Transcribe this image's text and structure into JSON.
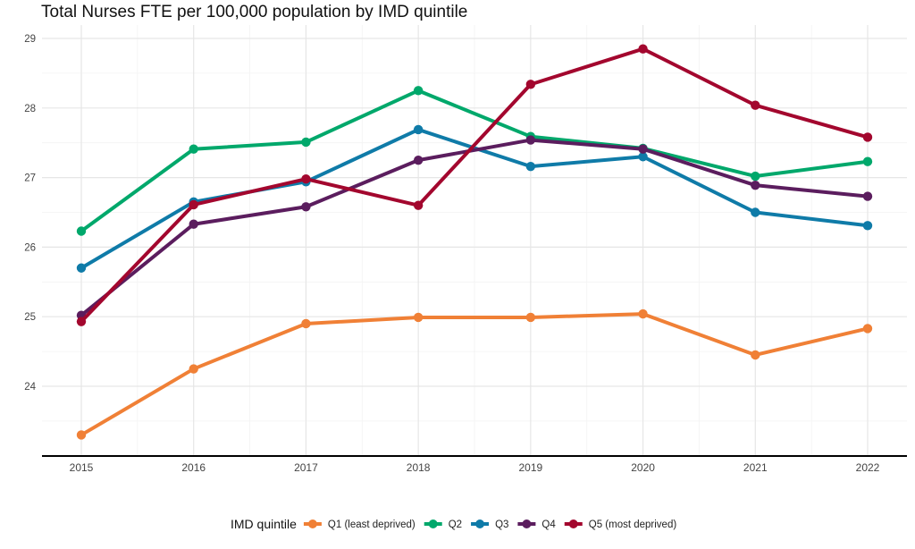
{
  "chart_data": {
    "type": "line",
    "title": "Total Nurses FTE per 100,000 population by IMD quintile",
    "xlabel": "",
    "ylabel": "",
    "x": [
      2015,
      2016,
      2017,
      2018,
      2019,
      2020,
      2021,
      2022
    ],
    "x_tick_labels": [
      "2015",
      "2016",
      "2017",
      "2018",
      "2019",
      "2020",
      "2021",
      "2022"
    ],
    "ylim": [
      23.0,
      29.15
    ],
    "y_ticks": [
      24,
      25,
      26,
      27,
      28,
      29
    ],
    "y_tick_labels": [
      "24",
      "25",
      "26",
      "27",
      "28",
      "29"
    ],
    "grid": true,
    "legend": {
      "title": "IMD quintile",
      "position": "bottom"
    },
    "series": [
      {
        "name": "Q1 (least deprived)",
        "color": "#F08036",
        "values": [
          23.3,
          24.25,
          24.9,
          24.99,
          24.99,
          25.04,
          24.45,
          24.83
        ]
      },
      {
        "name": "Q2",
        "color": "#00A86B",
        "values": [
          26.23,
          27.41,
          27.51,
          28.25,
          27.59,
          27.42,
          27.02,
          27.23
        ]
      },
      {
        "name": "Q3",
        "color": "#0F7BA8",
        "values": [
          25.7,
          26.65,
          26.94,
          27.69,
          27.16,
          27.3,
          26.5,
          26.31
        ]
      },
      {
        "name": "Q4",
        "color": "#5B1D5E",
        "values": [
          25.02,
          26.33,
          26.58,
          27.25,
          27.54,
          27.41,
          26.89,
          26.73
        ]
      },
      {
        "name": "Q5 (most deprived)",
        "color": "#A3072E",
        "values": [
          24.93,
          26.61,
          26.98,
          26.6,
          28.34,
          28.85,
          28.04,
          27.58
        ]
      }
    ]
  }
}
